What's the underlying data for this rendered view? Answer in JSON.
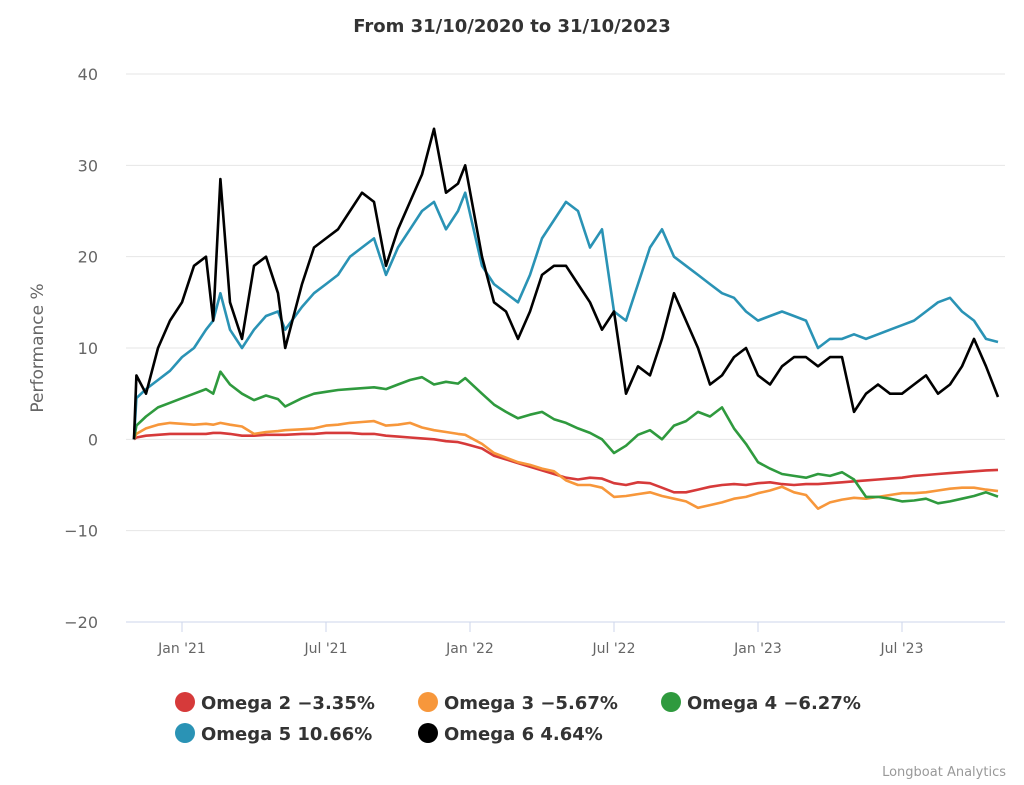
{
  "chart_data": {
    "type": "line",
    "title": "From 31/10/2020 to 31/10/2023",
    "xlabel": "",
    "ylabel": "Performance %",
    "ylim": [
      -20,
      40
    ],
    "yticks": [
      "40",
      "30",
      "20",
      "10",
      "0",
      "−10",
      "−20"
    ],
    "ytick_values": [
      40,
      30,
      20,
      10,
      0,
      -10,
      -20
    ],
    "xlim_months": [
      0,
      36
    ],
    "xticks": [
      {
        "label": "Jan '21",
        "month": 2
      },
      {
        "label": "Jul '21",
        "month": 8
      },
      {
        "label": "Jan '22",
        "month": 14
      },
      {
        "label": "Jul '22",
        "month": 20
      },
      {
        "label": "Jan '23",
        "month": 26
      },
      {
        "label": "Jul '23",
        "month": 32
      }
    ],
    "grid": true,
    "legend_position": "bottom",
    "x_months": [
      0,
      0.1,
      0.5,
      1,
      1.5,
      2,
      2.5,
      3,
      3.3,
      3.6,
      4,
      4.5,
      5,
      5.5,
      6,
      6.3,
      7,
      7.5,
      8,
      8.5,
      9,
      9.5,
      10,
      10.5,
      11,
      11.5,
      12,
      12.5,
      13,
      13.5,
      13.8,
      14.5,
      15,
      15.5,
      16,
      16.5,
      17,
      17.5,
      18,
      18.5,
      19,
      19.5,
      20,
      20.5,
      21,
      21.5,
      22,
      22.5,
      23,
      23.5,
      24,
      24.5,
      25,
      25.5,
      26,
      26.5,
      27,
      27.5,
      28,
      28.5,
      29,
      29.5,
      30,
      30.5,
      31,
      31.5,
      32,
      32.5,
      33,
      33.5,
      34,
      34.5,
      35,
      35.5,
      36
    ],
    "series": [
      {
        "name": "Omega 2",
        "label": "Omega 2 −3.35%",
        "color": "#d63a3a",
        "values": [
          0,
          0.2,
          0.4,
          0.5,
          0.6,
          0.6,
          0.6,
          0.6,
          0.7,
          0.7,
          0.6,
          0.4,
          0.4,
          0.5,
          0.5,
          0.5,
          0.6,
          0.6,
          0.7,
          0.7,
          0.7,
          0.6,
          0.6,
          0.4,
          0.3,
          0.2,
          0.1,
          0,
          -0.2,
          -0.3,
          -0.5,
          -1,
          -1.8,
          -2.2,
          -2.6,
          -3,
          -3.4,
          -3.8,
          -4.2,
          -4.4,
          -4.2,
          -4.3,
          -4.8,
          -5,
          -4.7,
          -4.8,
          -5.3,
          -5.8,
          -5.8,
          -5.5,
          -5.2,
          -5,
          -4.9,
          -5,
          -4.8,
          -4.7,
          -4.9,
          -5,
          -4.9,
          -4.9,
          -4.8,
          -4.7,
          -4.6,
          -4.5,
          -4.4,
          -4.3,
          -4.2,
          -4,
          -3.9,
          -3.8,
          -3.7,
          -3.6,
          -3.5,
          -3.4,
          -3.35
        ]
      },
      {
        "name": "Omega 3",
        "label": "Omega 3 −5.67%",
        "color": "#f7973b",
        "values": [
          0,
          0.6,
          1.2,
          1.6,
          1.8,
          1.7,
          1.6,
          1.7,
          1.6,
          1.8,
          1.6,
          1.4,
          0.6,
          0.8,
          0.9,
          1,
          1.1,
          1.2,
          1.5,
          1.6,
          1.8,
          1.9,
          2,
          1.5,
          1.6,
          1.8,
          1.3,
          1,
          0.8,
          0.6,
          0.5,
          -0.5,
          -1.5,
          -2,
          -2.5,
          -2.8,
          -3.2,
          -3.5,
          -4.5,
          -5,
          -5,
          -5.3,
          -6.3,
          -6.2,
          -6,
          -5.8,
          -6.2,
          -6.5,
          -6.8,
          -7.5,
          -7.2,
          -6.9,
          -6.5,
          -6.3,
          -5.9,
          -5.6,
          -5.2,
          -5.8,
          -6.1,
          -7.6,
          -6.9,
          -6.6,
          -6.4,
          -6.5,
          -6.3,
          -6.1,
          -5.9,
          -5.9,
          -5.8,
          -5.6,
          -5.4,
          -5.3,
          -5.3,
          -5.5,
          -5.67
        ]
      },
      {
        "name": "Omega 4",
        "label": "Omega 4 −6.27%",
        "color": "#2f9a3e",
        "values": [
          0,
          1.5,
          2.5,
          3.5,
          4,
          4.5,
          5,
          5.5,
          5,
          7.4,
          6,
          5,
          4.3,
          4.8,
          4.4,
          3.6,
          4.5,
          5,
          5.2,
          5.4,
          5.5,
          5.6,
          5.7,
          5.5,
          6,
          6.5,
          6.8,
          6,
          6.3,
          6.1,
          6.7,
          5,
          3.8,
          3,
          2.3,
          2.7,
          3,
          2.2,
          1.8,
          1.2,
          0.7,
          0,
          -1.5,
          -0.7,
          0.5,
          1,
          0,
          1.5,
          2,
          3,
          2.5,
          3.5,
          1.2,
          -0.5,
          -2.5,
          -3.2,
          -3.8,
          -4,
          -4.2,
          -3.8,
          -4,
          -3.6,
          -4.4,
          -6.3,
          -6.3,
          -6.5,
          -6.8,
          -6.7,
          -6.5,
          -7,
          -6.8,
          -6.5,
          -6.2,
          -5.8,
          -6.27
        ]
      },
      {
        "name": "Omega 5",
        "label": "Omega 5 10.66%",
        "color": "#2a93b5",
        "values": [
          0,
          4.5,
          5.5,
          6.5,
          7.5,
          9,
          10,
          12,
          13,
          16,
          12,
          10,
          12,
          13.5,
          14,
          12,
          14.5,
          16,
          17,
          18,
          20,
          21,
          22,
          18,
          21,
          23,
          25,
          26,
          23,
          25,
          27,
          19,
          17,
          16,
          15,
          18,
          22,
          24,
          26,
          25,
          21,
          23,
          14,
          13,
          17,
          21,
          23,
          20,
          19,
          18,
          17,
          16,
          15.5,
          14,
          13,
          13.5,
          14,
          13.5,
          13,
          10,
          11,
          11,
          11.5,
          11,
          11.5,
          12,
          12.5,
          13,
          14,
          15,
          15.5,
          14,
          13,
          11,
          10.66
        ]
      },
      {
        "name": "Omega 6",
        "label": "Omega 6 4.64%",
        "color": "#000000",
        "values": [
          0,
          7,
          5,
          10,
          13,
          15,
          19,
          20,
          13,
          28.5,
          15,
          11,
          19,
          20,
          16,
          10,
          17,
          21,
          22,
          23,
          25,
          27,
          26,
          19,
          23,
          26,
          29,
          34,
          27,
          28,
          30,
          20,
          15,
          14,
          11,
          14,
          18,
          19,
          19,
          17,
          15,
          12,
          14,
          5,
          8,
          7,
          11,
          16,
          13,
          10,
          6,
          7,
          9,
          10,
          7,
          6,
          8,
          9,
          9,
          8,
          9,
          9,
          3,
          5,
          6,
          5,
          5,
          6,
          7,
          5,
          6,
          8,
          11,
          8,
          4.64
        ]
      }
    ]
  },
  "credit": "Longboat Analytics"
}
